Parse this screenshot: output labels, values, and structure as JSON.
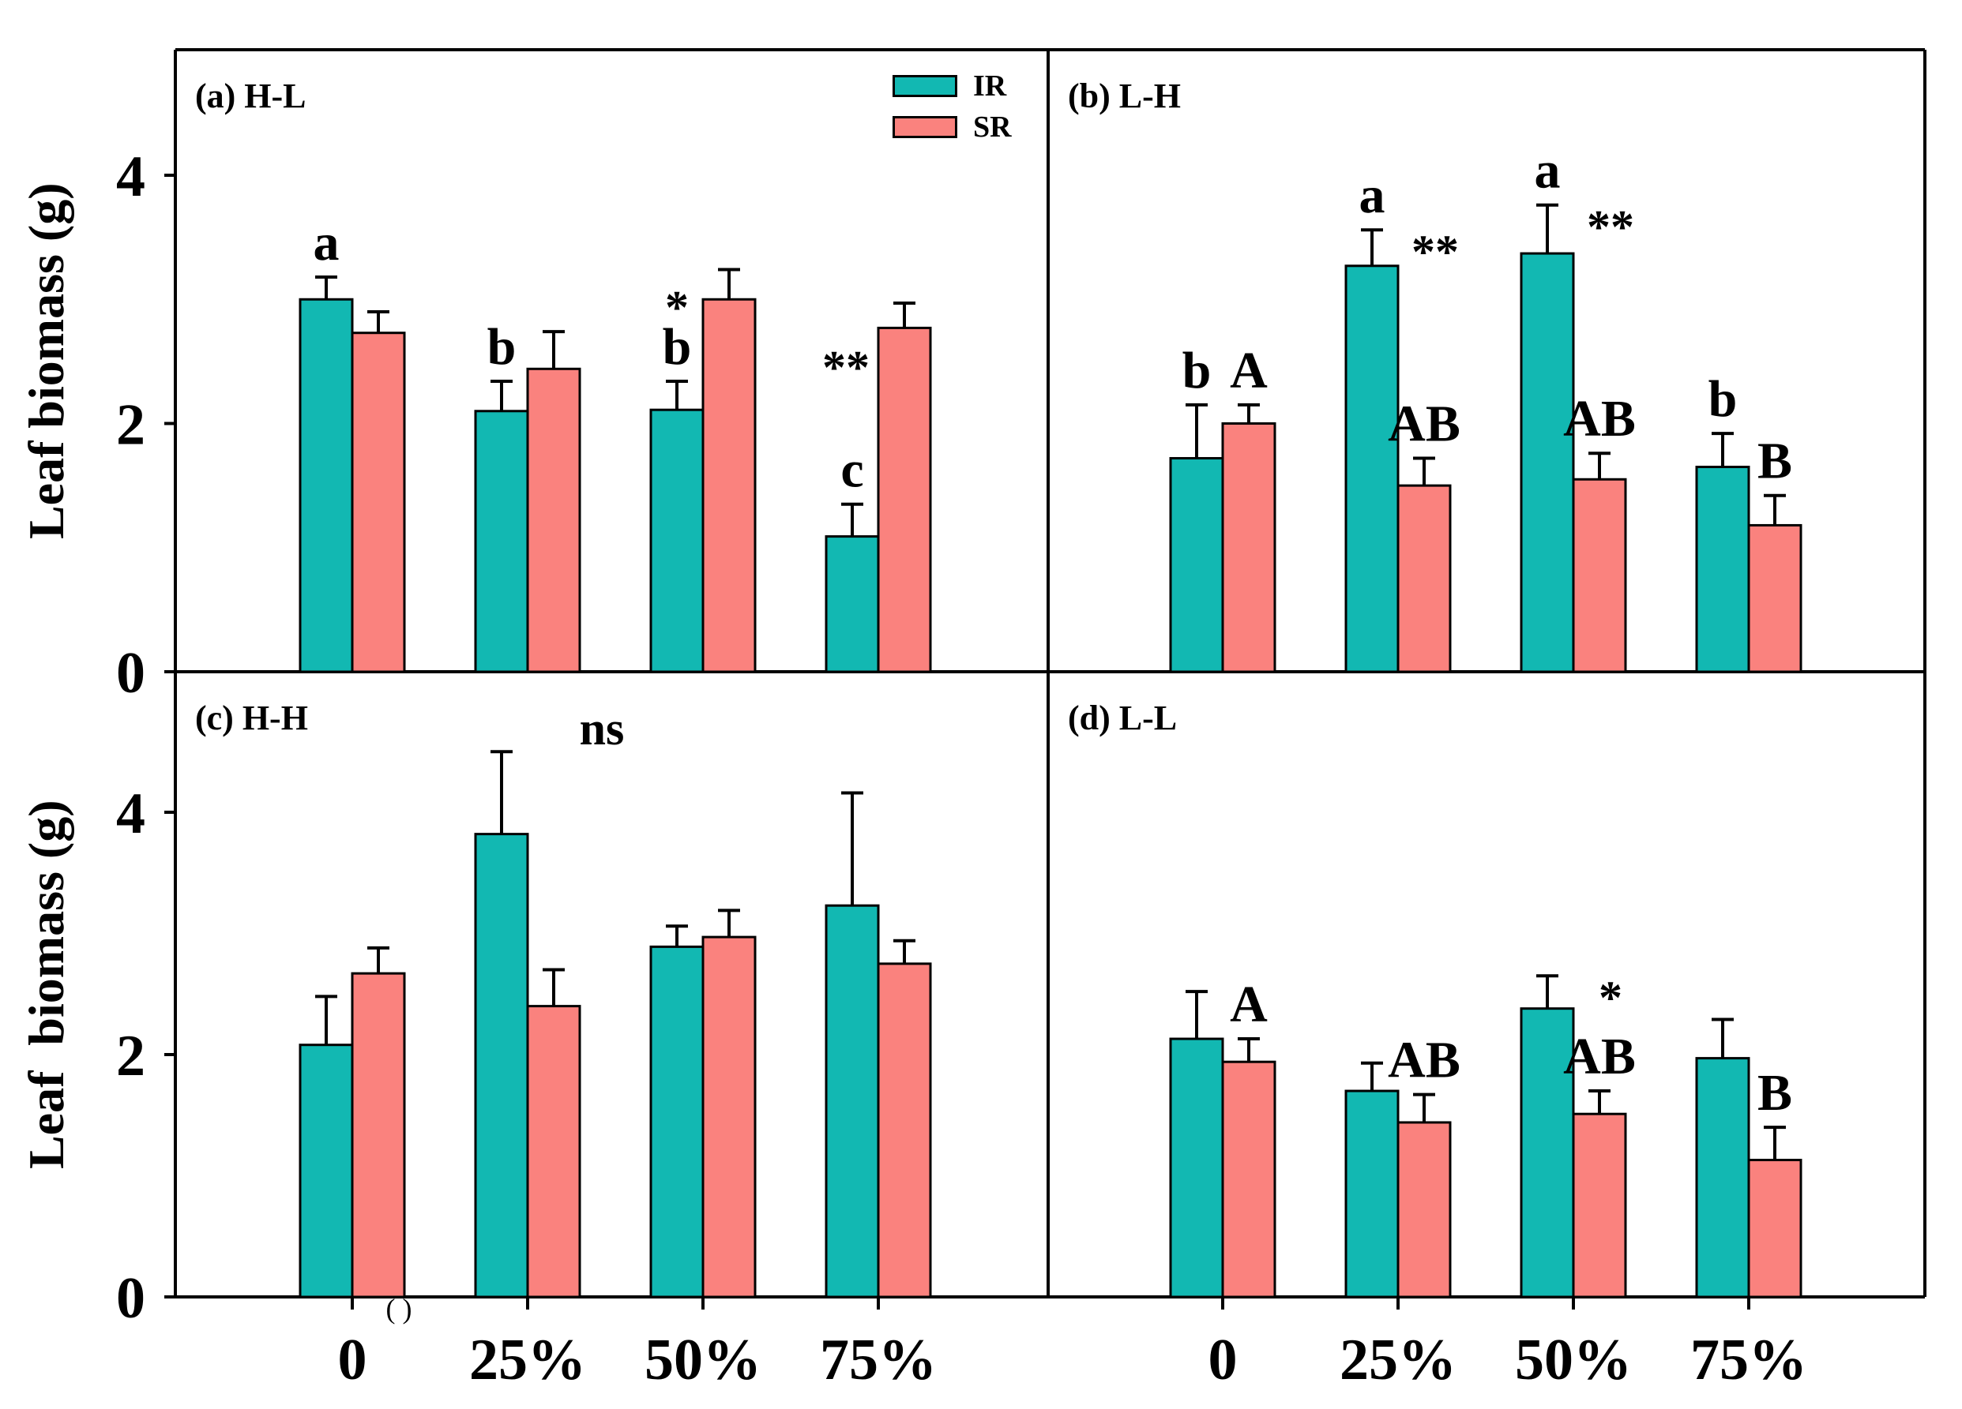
{
  "figure": {
    "y_axis_label_top": "Leaf biomass (g)",
    "y_axis_label_bottom": "Leaf  biomass (g)",
    "y_ticks": [
      "0",
      "2",
      "4"
    ],
    "legend": [
      {
        "label": "IR",
        "color": "#12B8B2"
      },
      {
        "label": "SR",
        "color": "#FA827E"
      }
    ],
    "colors": {
      "ir_fill": "#12B8B2",
      "sr_fill": "#FA827E",
      "stroke": "#000000",
      "background": "#FFFFFF"
    }
  },
  "chart_data": {
    "type": "bar",
    "categories": [
      "0",
      "25%",
      "50%",
      "75%"
    ],
    "xlabel": "",
    "ylabel": "Leaf biomass (g)",
    "ylim": [
      0,
      5
    ],
    "grid": false,
    "legend_position": "top-right-of-first-panel",
    "panels": [
      {
        "id": "a",
        "label": "(a) H-L",
        "row": 0,
        "col": 0,
        "series": [
          {
            "name": "IR",
            "values": [
              3.0,
              2.1,
              2.11,
              1.09
            ],
            "errors": [
              0.18,
              0.24,
              0.23,
              0.26
            ]
          },
          {
            "name": "SR",
            "values": [
              2.73,
              2.44,
              3.0,
              2.77
            ],
            "errors": [
              0.17,
              0.3,
              0.24,
              0.2
            ]
          }
        ],
        "annotations": [
          {
            "text": "a",
            "series": "IR",
            "group": 0,
            "pos": "above"
          },
          {
            "text": "b",
            "series": "IR",
            "group": 1,
            "pos": "above"
          },
          {
            "text": "b",
            "series": "IR",
            "group": 2,
            "pos": "above"
          },
          {
            "text": "*",
            "series": "SR",
            "group": 2,
            "pos": "left-of-bar-top"
          },
          {
            "text": "c",
            "series": "IR",
            "group": 3,
            "pos": "above"
          },
          {
            "text": "**",
            "series": "SR",
            "group": 3,
            "pos": "left-below-top"
          }
        ]
      },
      {
        "id": "b",
        "label": "(b) L-H",
        "row": 0,
        "col": 1,
        "series": [
          {
            "name": "IR",
            "values": [
              1.72,
              3.27,
              3.37,
              1.65
            ],
            "errors": [
              0.43,
              0.29,
              0.39,
              0.27
            ]
          },
          {
            "name": "SR",
            "values": [
              2.0,
              1.5,
              1.55,
              1.18
            ],
            "errors": [
              0.15,
              0.22,
              0.21,
              0.24
            ]
          }
        ],
        "annotations": [
          {
            "text": "b",
            "series": "IR",
            "group": 0,
            "pos": "above"
          },
          {
            "text": "A",
            "series": "SR",
            "group": 0,
            "pos": "above"
          },
          {
            "text": "a",
            "series": "IR",
            "group": 1,
            "pos": "above"
          },
          {
            "text": "**",
            "series": "IR",
            "group": 1,
            "pos": "right-of-cap"
          },
          {
            "text": "AB",
            "series": "SR",
            "group": 1,
            "pos": "above"
          },
          {
            "text": "a",
            "series": "IR",
            "group": 2,
            "pos": "above"
          },
          {
            "text": "**",
            "series": "IR",
            "group": 2,
            "pos": "right-of-cap"
          },
          {
            "text": "AB",
            "series": "SR",
            "group": 2,
            "pos": "above"
          },
          {
            "text": "b",
            "series": "IR",
            "group": 3,
            "pos": "above"
          },
          {
            "text": "B",
            "series": "SR",
            "group": 3,
            "pos": "above"
          }
        ]
      },
      {
        "id": "c",
        "label": "(c) H-H",
        "row": 1,
        "col": 0,
        "series": [
          {
            "name": "IR",
            "values": [
              2.08,
              3.82,
              2.89,
              3.23
            ],
            "errors": [
              0.4,
              0.68,
              0.17,
              0.93
            ]
          },
          {
            "name": "SR",
            "values": [
              2.67,
              2.4,
              2.97,
              2.75
            ],
            "errors": [
              0.21,
              0.3,
              0.22,
              0.19
            ]
          }
        ],
        "annotations": [
          {
            "text": "ns",
            "pos": "free",
            "x": 762,
            "y": 943,
            "size": "large"
          },
          {
            "text": "( )",
            "pos": "free",
            "x": 505,
            "y": 1670,
            "size": "small"
          }
        ]
      },
      {
        "id": "d",
        "label": "(d) L-L",
        "row": 1,
        "col": 1,
        "series": [
          {
            "name": "IR",
            "values": [
              2.13,
              1.7,
              2.38,
              1.97
            ],
            "errors": [
              0.39,
              0.23,
              0.27,
              0.32
            ]
          },
          {
            "name": "SR",
            "values": [
              1.94,
              1.44,
              1.51,
              1.13
            ],
            "errors": [
              0.19,
              0.23,
              0.19,
              0.27
            ]
          }
        ],
        "annotations": [
          {
            "text": "A",
            "series": "SR",
            "group": 0,
            "pos": "above"
          },
          {
            "text": "AB",
            "series": "SR",
            "group": 1,
            "pos": "above"
          },
          {
            "text": "*",
            "series": "IR",
            "group": 2,
            "pos": "right-of-cap"
          },
          {
            "text": "AB",
            "series": "SR",
            "group": 2,
            "pos": "above"
          },
          {
            "text": "B",
            "series": "SR",
            "group": 3,
            "pos": "above"
          }
        ]
      }
    ]
  }
}
